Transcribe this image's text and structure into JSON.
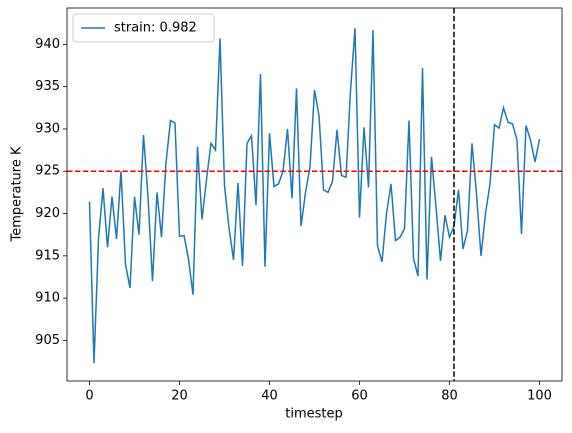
{
  "chart_data": {
    "type": "line",
    "xlabel": "timestep",
    "ylabel": "Temperature K",
    "x": [
      0,
      1,
      2,
      3,
      4,
      5,
      6,
      7,
      8,
      9,
      10,
      11,
      12,
      13,
      14,
      15,
      16,
      17,
      18,
      19,
      20,
      21,
      22,
      23,
      24,
      25,
      26,
      27,
      28,
      29,
      30,
      31,
      32,
      33,
      34,
      35,
      36,
      37,
      38,
      39,
      40,
      41,
      42,
      43,
      44,
      45,
      46,
      47,
      48,
      49,
      50,
      51,
      52,
      53,
      54,
      55,
      56,
      57,
      58,
      59,
      60,
      61,
      62,
      63,
      64,
      65,
      66,
      67,
      68,
      69,
      70,
      71,
      72,
      73,
      74,
      75,
      76,
      77,
      78,
      79,
      80,
      81,
      82,
      83,
      84,
      85,
      86,
      87,
      88,
      89,
      90,
      91,
      92,
      93,
      94,
      95,
      96,
      97,
      98,
      99,
      100
    ],
    "series": [
      {
        "name": "strain: 0.982",
        "color": "#1f77b4",
        "values": [
          921.4,
          902.3,
          917,
          923,
          916,
          922,
          917,
          925,
          914,
          911.2,
          922,
          917.5,
          929.3,
          922,
          912,
          922.5,
          917.2,
          926,
          931,
          930.7,
          917.3,
          917.4,
          914.6,
          910.4,
          927.9,
          919.3,
          924,
          928.3,
          927.5,
          940.7,
          923.3,
          918.3,
          914.5,
          923.6,
          913.8,
          928.3,
          929.2,
          921,
          936.5,
          913.7,
          929.5,
          923.2,
          923.5,
          925,
          930,
          921.8,
          934.8,
          918.5,
          922.5,
          925.5,
          934.6,
          931.6,
          922.8,
          922.5,
          923.8,
          929.9,
          924.5,
          924.3,
          934.5,
          941.9,
          919.5,
          930.2,
          923.1,
          941.7,
          916.2,
          914.3,
          920,
          923.5,
          916.8,
          917.2,
          918.2,
          931,
          914.7,
          912.6,
          937.2,
          912.2,
          926.7,
          920.8,
          914.4,
          919.8,
          917.2,
          918.5,
          922.8,
          915.8,
          918,
          928.3,
          922.3,
          915,
          920,
          923.5,
          930.5,
          930.1,
          932.5,
          930.8,
          930.6,
          928.7,
          917.6,
          930.4,
          928.7,
          926.1,
          928.8
        ]
      }
    ],
    "reference_lines": [
      {
        "axis": "y",
        "value": 925,
        "color": "#ff0000"
      },
      {
        "axis": "x",
        "value": 81,
        "color": "#000000"
      }
    ],
    "xlim": [
      -5,
      105
    ],
    "ylim": [
      900.2,
      944.3
    ],
    "xticks": [
      0,
      20,
      40,
      60,
      80,
      100
    ],
    "yticks": [
      905,
      910,
      915,
      920,
      925,
      930,
      935,
      940
    ],
    "legend": "upper left"
  }
}
